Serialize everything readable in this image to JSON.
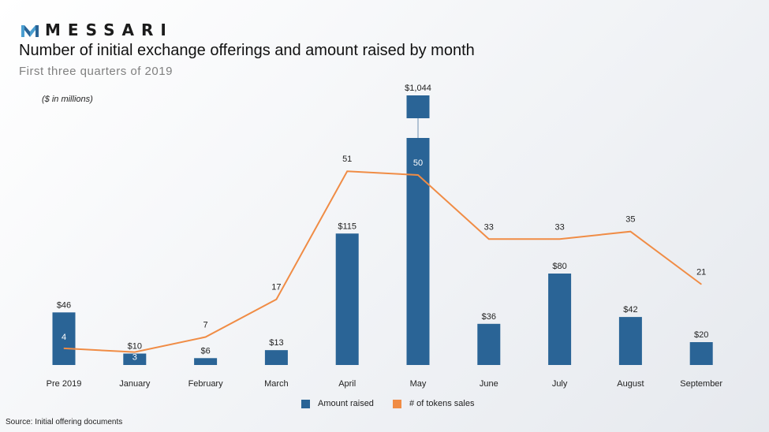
{
  "brand": {
    "name": "MESSARI",
    "colors": {
      "bar": "#2a6496",
      "line": "#f08c45",
      "text": "#222222"
    }
  },
  "header": {
    "title": "Number of initial exchange offerings and amount raised by month",
    "subtitle": "First three quarters of 2019"
  },
  "unit_note": "($ in millions)",
  "source": "Source: Initial offering documents",
  "chart_data": {
    "type": "bar",
    "categories": [
      "Pre 2019",
      "January",
      "February",
      "March",
      "April",
      "May",
      "June",
      "July",
      "August",
      "September"
    ],
    "series": [
      {
        "name": "Amount raised",
        "kind": "bar",
        "color": "#2a6496",
        "values": [
          46,
          10,
          6,
          13,
          115,
          1044,
          36,
          80,
          42,
          20
        ],
        "labels": [
          "$46",
          "$10",
          "$6",
          "$13",
          "$115",
          "$1,044",
          "$36",
          "$80",
          "$42",
          "$20"
        ]
      },
      {
        "name": "# of tokens sales",
        "kind": "line",
        "color": "#f08c45",
        "values": [
          4,
          3,
          7,
          17,
          51,
          50,
          33,
          33,
          35,
          21
        ],
        "labels": [
          "4",
          "3",
          "7",
          "17",
          "51",
          "50",
          "33",
          "33",
          "35",
          "21"
        ]
      }
    ],
    "axis_break": {
      "category": "May"
    },
    "legend": "bottom",
    "grid": false
  }
}
